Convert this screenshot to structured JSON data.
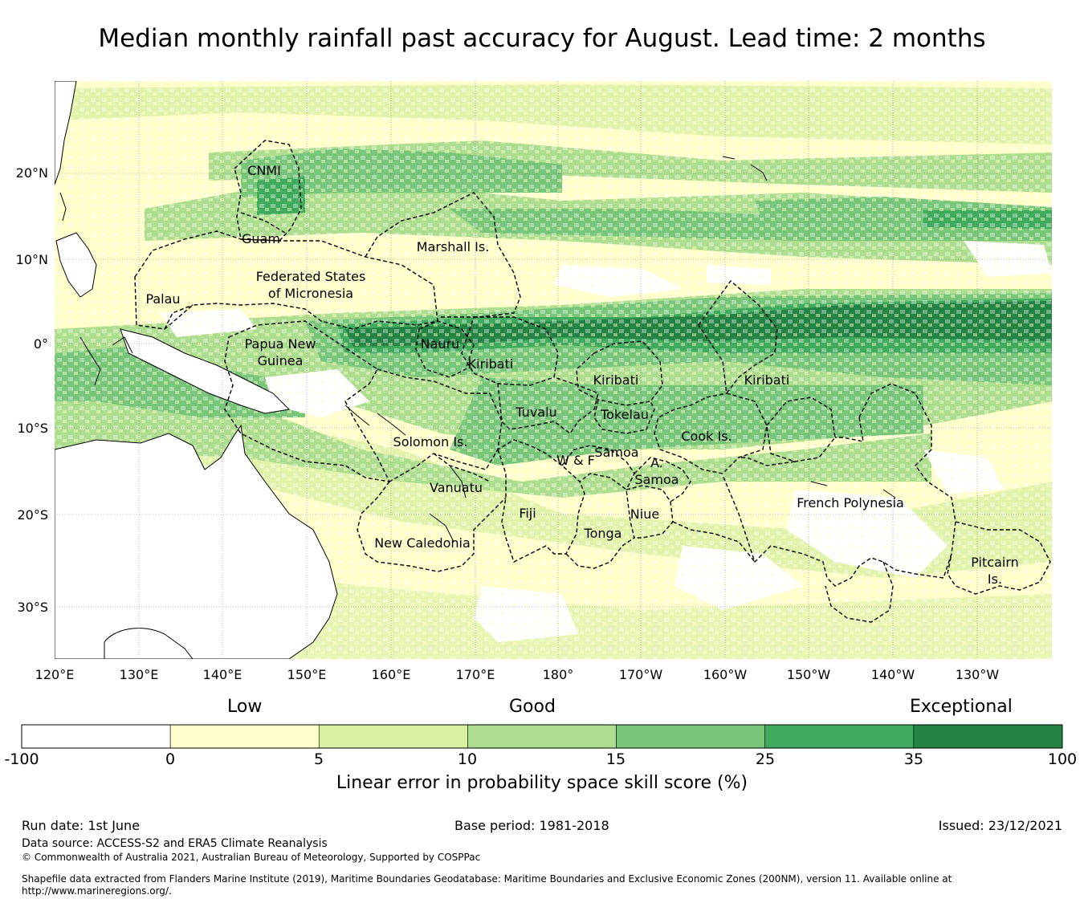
{
  "title": "Median monthly rainfall past accuracy for August. Lead time: 2 months",
  "map": {
    "lat_labels": [
      "20°N",
      "10°N",
      "0°",
      "10°S",
      "20°S",
      "30°S"
    ],
    "lon_labels": [
      "120°E",
      "130°E",
      "140°E",
      "150°E",
      "160°E",
      "170°E",
      "180°",
      "170°W",
      "160°W",
      "150°W",
      "140°W",
      "130°W"
    ],
    "regions": [
      "CNMI",
      "Guam",
      "Marshall Is.",
      "Federated States",
      "of Micronesia",
      "Palau",
      "Papua New",
      "Guinea",
      "Nauru",
      "Kiribati",
      "Kiribati",
      "Kiribati",
      "Tuvalu",
      "Tokelau",
      "Solomon Is.",
      "Samoa",
      "W & F",
      "A.",
      "Samoa",
      "Cook Is.",
      "Vanuatu",
      "Fiji",
      "Niue",
      "Tonga",
      "French Polynesia",
      "New Caledonia",
      "Pitcairn",
      "Is."
    ],
    "colors": {
      "land": "#ffffff",
      "coast": "#000000",
      "eez_boundary": "#000000"
    }
  },
  "legend": {
    "categories": [
      "Low",
      "Good",
      "Exceptional"
    ],
    "bins": [
      {
        "from": "-100",
        "to": "0",
        "color": "#ffffff"
      },
      {
        "from": "0",
        "to": "5",
        "color": "#ffffcc"
      },
      {
        "from": "5",
        "to": "10",
        "color": "#d9f0a3"
      },
      {
        "from": "10",
        "to": "15",
        "color": "#addd8e"
      },
      {
        "from": "15",
        "to": "25",
        "color": "#78c679"
      },
      {
        "from": "25",
        "to": "35",
        "color": "#41ab5d"
      },
      {
        "from": "35",
        "to": "100",
        "color": "#238443"
      }
    ],
    "ticks": [
      "-100",
      "0",
      "5",
      "10",
      "15",
      "25",
      "35",
      "100"
    ],
    "title": "Linear error in probability space skill score (%)"
  },
  "footer": {
    "run_date": "Run date: 1st June",
    "base_period": "Base period: 1981-2018",
    "issued": "Issued: 23/12/2021",
    "data_source": "Data source: ACCESS-S2 and ERA5 Climate Reanalysis",
    "copyright": "© Commonwealth of Australia 2021, Australian Bureau of Meteorology, Supported by COSPPac",
    "shapefile": "Shapefile data extracted from Flanders Marine Institute (2019), Maritime Boundaries Geodatabase: Maritime Boundaries and Exclusive Economic Zones (200NM), version 11. Available online at",
    "shapefile_url": "http://www.marineregions.org/."
  }
}
